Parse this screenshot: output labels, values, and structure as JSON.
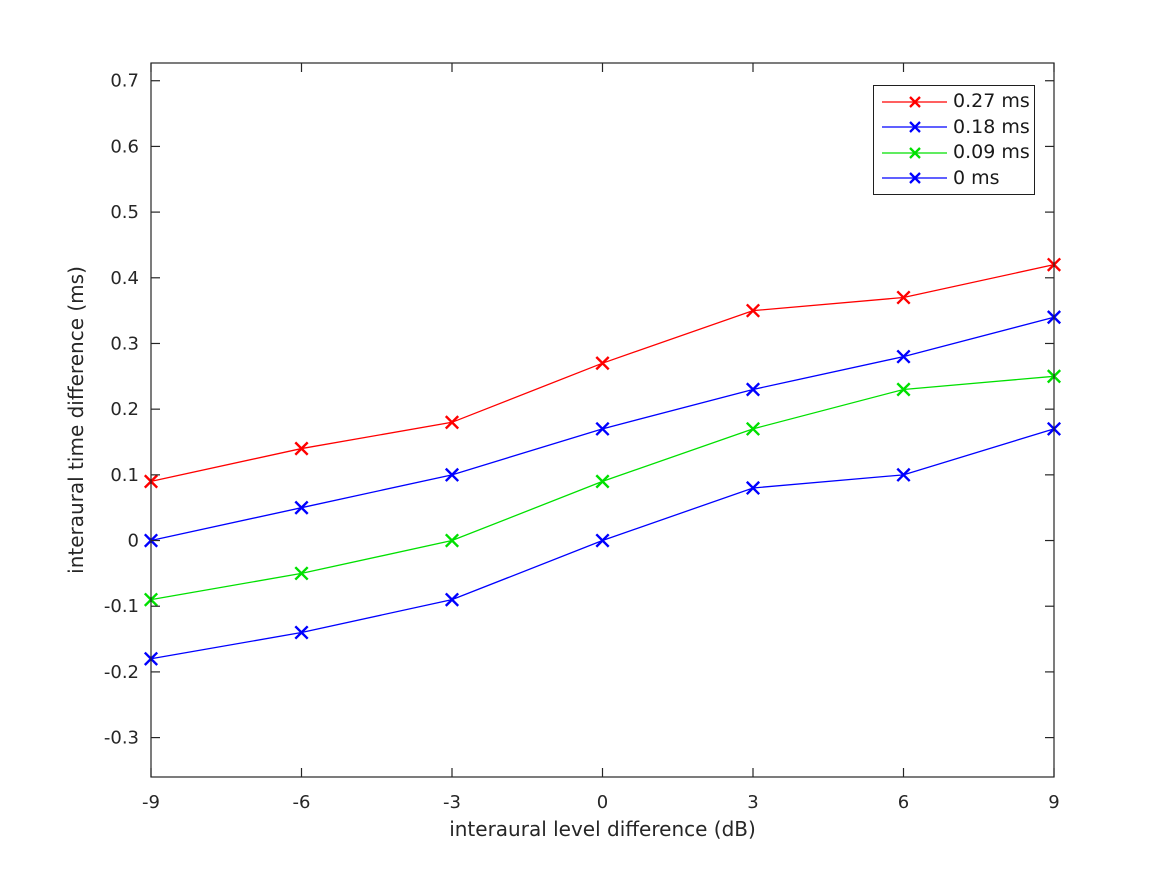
{
  "chart_data": {
    "type": "line",
    "xlabel": "interaural level difference (dB)",
    "ylabel": "interaural time difference (ms)",
    "x": [
      -9,
      -6,
      -3,
      0,
      3,
      6,
      9
    ],
    "xlim": [
      -9,
      9
    ],
    "ylim": [
      -0.36,
      0.727
    ],
    "x_ticks": {
      "values": [
        -9,
        -6,
        -3,
        0,
        3,
        6,
        9
      ],
      "labels": [
        "-9",
        "-6",
        "-3",
        "0",
        "3",
        "6",
        "9"
      ]
    },
    "y_ticks": {
      "values": [
        -0.3,
        -0.2,
        -0.1,
        0,
        0.1,
        0.2,
        0.3,
        0.4,
        0.5,
        0.6,
        0.7
      ],
      "labels": [
        "-0.3",
        "-0.2",
        "-0.1",
        "0",
        "0.1",
        "0.2",
        "0.3",
        "0.4",
        "0.5",
        "0.6",
        "0.7"
      ]
    },
    "grid": false,
    "marker": "x",
    "legend_position": "top-right",
    "axis_color": "#262626",
    "series": [
      {
        "name": "0.27 ms",
        "color": "#ff0000",
        "values": [
          0.09,
          0.14,
          0.18,
          0.27,
          0.35,
          0.37,
          0.42
        ]
      },
      {
        "name": "0.18 ms",
        "color": "#0000ff",
        "values": [
          0.0,
          0.05,
          0.1,
          0.17,
          0.23,
          0.28,
          0.34
        ]
      },
      {
        "name": "0.09 ms",
        "color": "#00e000",
        "values": [
          -0.09,
          -0.05,
          0.0,
          0.09,
          0.17,
          0.23,
          0.25
        ]
      },
      {
        "name": "0 ms",
        "color": "#0000ff",
        "values": [
          -0.18,
          -0.14,
          -0.09,
          0.0,
          0.08,
          0.1,
          0.17
        ]
      }
    ]
  }
}
